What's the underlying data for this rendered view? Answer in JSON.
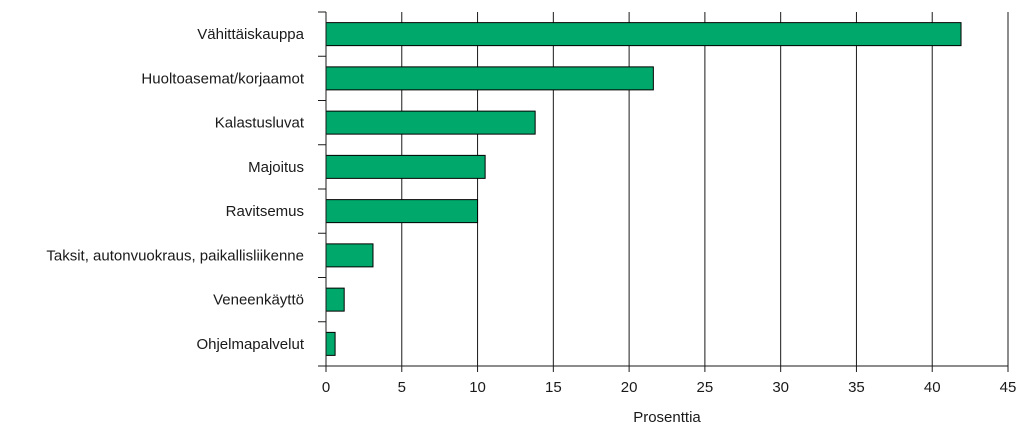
{
  "chart_data": {
    "type": "bar",
    "orientation": "horizontal",
    "categories": [
      "Vähittäiskauppa",
      "Huoltoasemat/korjaamot",
      "Kalastusluvat",
      "Majoitus",
      "Ravitsemus",
      "Taksit, autonvuokraus, paikallisliikenne",
      "Veneenkäyttö",
      "Ohjelmapalvelut"
    ],
    "values": [
      41.9,
      21.6,
      13.8,
      10.5,
      10.0,
      3.1,
      1.2,
      0.6
    ],
    "xlabel": "Prosenttia",
    "ylabel": "",
    "xlim": [
      0,
      45
    ],
    "xticks": [
      0,
      5,
      10,
      15,
      20,
      25,
      30,
      35,
      40,
      45
    ],
    "grid": "vertical",
    "bar_color": "#00a86b",
    "bar_edge_color": "#000000"
  }
}
